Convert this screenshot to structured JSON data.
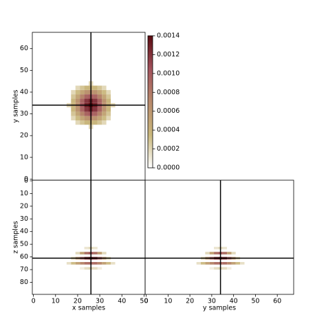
{
  "chart_data": [
    {
      "type": "heatmap",
      "ylabel": "y samples",
      "xlim": [
        -0.5,
        50.5
      ],
      "ylim": [
        -0.5,
        67.5
      ],
      "yticks": [
        0,
        10,
        20,
        30,
        40,
        50,
        60
      ],
      "x": [
        16,
        18,
        20,
        22,
        24,
        26,
        28,
        30,
        32,
        34,
        36
      ],
      "y": [
        24,
        26,
        28,
        30,
        32,
        34,
        36,
        38,
        40,
        42,
        44
      ],
      "values": [
        [
          0,
          0,
          0,
          0,
          0,
          0.00019,
          0,
          0,
          0,
          0,
          0
        ],
        [
          0,
          0,
          0.00019,
          0.00028,
          0.00036,
          0.00039,
          0.00036,
          0.00028,
          0.00019,
          0,
          0
        ],
        [
          0,
          0.00019,
          0.00033,
          0.00049,
          0.00063,
          0.00068,
          0.00063,
          0.00049,
          0.00033,
          0.00019,
          0
        ],
        [
          0,
          0.00028,
          0.00049,
          0.00074,
          0.00094,
          0.00102,
          0.00094,
          0.00074,
          0.00049,
          0.00028,
          0
        ],
        [
          0,
          0.00036,
          0.00063,
          0.00094,
          0.00119,
          0.00129,
          0.00119,
          0.00094,
          0.00063,
          0.00036,
          0
        ],
        [
          0.00019,
          0.00039,
          0.00068,
          0.00102,
          0.00129,
          0.0014,
          0.00129,
          0.00102,
          0.00068,
          0.00039,
          0.00019
        ],
        [
          0,
          0.00036,
          0.00063,
          0.00094,
          0.00119,
          0.00129,
          0.00119,
          0.00094,
          0.00063,
          0.00036,
          0
        ],
        [
          0,
          0.00028,
          0.00049,
          0.00074,
          0.00094,
          0.00102,
          0.00094,
          0.00074,
          0.00049,
          0.00028,
          0
        ],
        [
          0,
          0.00019,
          0.00033,
          0.00049,
          0.00063,
          0.00068,
          0.00063,
          0.00049,
          0.00033,
          0.00019,
          0
        ],
        [
          0,
          0,
          0.00019,
          0.00028,
          0.00036,
          0.00039,
          0.00036,
          0.00028,
          0.00019,
          0,
          0
        ],
        [
          0,
          0,
          0,
          0,
          0,
          0.00019,
          0,
          0,
          0,
          0,
          0
        ]
      ]
    },
    {
      "type": "heatmap",
      "xlabel": "x samples",
      "ylabel": "z samples",
      "xlim": [
        -0.5,
        50.5
      ],
      "ylim": [
        89.5,
        -0.5
      ],
      "xticks": [
        0,
        10,
        20,
        30,
        40,
        50
      ],
      "yticks": [
        0,
        10,
        20,
        30,
        40,
        50,
        60,
        70,
        80
      ],
      "x": [
        14,
        16,
        18,
        20,
        22,
        24,
        26,
        28,
        30,
        32,
        34,
        36,
        38
      ],
      "y": [
        53,
        57,
        61,
        65,
        69
      ],
      "values": [
        [
          0,
          0,
          0,
          0,
          0,
          0.00012,
          0.00018,
          0.00012,
          0,
          0,
          0,
          0,
          0
        ],
        [
          0,
          0,
          0,
          0.00018,
          0.00052,
          0.00086,
          0.001,
          0.00086,
          0.00052,
          0.00018,
          0,
          0,
          0
        ],
        [
          0,
          0,
          0.00022,
          0.00058,
          0.00098,
          0.0013,
          0.0014,
          0.0013,
          0.00098,
          0.00058,
          0.00022,
          0,
          0
        ],
        [
          0,
          0.00015,
          0.00032,
          0.00052,
          0.00072,
          0.00086,
          0.0009,
          0.00086,
          0.00072,
          0.00052,
          0.00032,
          0.00015,
          0
        ],
        [
          0,
          0,
          0,
          0,
          8e-05,
          0.00016,
          0.0002,
          0.00016,
          8e-05,
          0,
          0,
          0,
          0
        ]
      ]
    },
    {
      "type": "heatmap",
      "xlabel": "y samples",
      "xlim": [
        -0.5,
        67.5
      ],
      "ylim": [
        89.5,
        -0.5
      ],
      "xticks": [
        0,
        10,
        20,
        30,
        40,
        50,
        60
      ],
      "x": [
        22,
        24,
        26,
        28,
        30,
        32,
        34,
        36,
        38,
        40,
        42,
        44,
        46
      ],
      "y": [
        53,
        57,
        61,
        65,
        69
      ],
      "values": [
        [
          0,
          0,
          0,
          0,
          0,
          0.00012,
          0.00018,
          0.00012,
          0,
          0,
          0,
          0,
          0
        ],
        [
          0,
          0,
          0,
          0.00018,
          0.00052,
          0.00086,
          0.001,
          0.00086,
          0.00052,
          0.00018,
          0,
          0,
          0
        ],
        [
          0,
          0,
          0.00022,
          0.00058,
          0.00098,
          0.0013,
          0.0014,
          0.0013,
          0.00098,
          0.00058,
          0.00022,
          0,
          0
        ],
        [
          0,
          0.00015,
          0.00032,
          0.00052,
          0.00072,
          0.00086,
          0.0009,
          0.00086,
          0.00072,
          0.00052,
          0.00032,
          0.00015,
          0
        ],
        [
          0,
          0,
          0,
          0,
          8e-05,
          0.00016,
          0.0002,
          0.00016,
          8e-05,
          0,
          0,
          0,
          0
        ]
      ]
    }
  ],
  "cursor": {
    "x": 26,
    "y": 34,
    "z": 61,
    "color": "#000000"
  },
  "colorbar": {
    "lim": [
      0,
      0.0014
    ],
    "ticks": [
      {
        "value": 0,
        "label": "0.0000"
      },
      {
        "value": 0.0002,
        "label": "0.0002"
      },
      {
        "value": 0.0004,
        "label": "0.0004"
      },
      {
        "value": 0.0006,
        "label": "0.0006"
      },
      {
        "value": 0.0008,
        "label": "0.0008"
      },
      {
        "value": 0.001,
        "label": "0.0010"
      },
      {
        "value": 0.0012,
        "label": "0.0012"
      },
      {
        "value": 0.0014,
        "label": "0.0014"
      }
    ],
    "colormap": [
      "#ffffff",
      "#c9b77c",
      "#b88a6c",
      "#a2525c",
      "#5a0a10"
    ]
  }
}
